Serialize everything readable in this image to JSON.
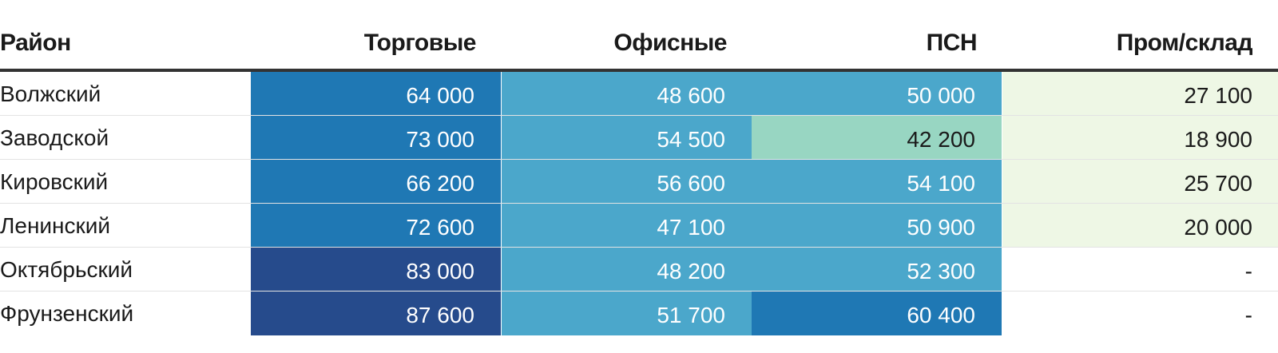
{
  "columns": [
    "Район",
    "Торговые",
    "Офисные",
    "ПСН",
    "Пром/склад"
  ],
  "rows": [
    {
      "name": "Волжский",
      "cells": [
        "64 000",
        "48 600",
        "50 000",
        "27 100"
      ]
    },
    {
      "name": "Заводской",
      "cells": [
        "73 000",
        "54 500",
        "42 200",
        "18 900"
      ]
    },
    {
      "name": "Кировский",
      "cells": [
        "66 200",
        "56 600",
        "54 100",
        "25 700"
      ]
    },
    {
      "name": "Ленинский",
      "cells": [
        "72 600",
        "47 100",
        "50 900",
        "20 000"
      ]
    },
    {
      "name": "Октябрьский",
      "cells": [
        "83 000",
        "48 200",
        "52 300",
        "-"
      ]
    },
    {
      "name": "Фрунзенский",
      "cells": [
        "87 600",
        "51 700",
        "60 400",
        "-"
      ]
    }
  ],
  "cell_colors": [
    [
      "#1f78b4",
      "#4ba7cb",
      "#4ba7cb",
      "#eef7e5"
    ],
    [
      "#1f78b4",
      "#4ba7cb",
      "#98d6c2",
      "#eef7e5"
    ],
    [
      "#1f78b4",
      "#4ba7cb",
      "#4ba7cb",
      "#eef7e5"
    ],
    [
      "#1f78b4",
      "#4ba7cb",
      "#4ba7cb",
      "#eef7e5"
    ],
    [
      "#264b8c",
      "#4ba7cb",
      "#4ba7cb",
      "#ffffff"
    ],
    [
      "#264b8c",
      "#4ba7cb",
      "#1f78b4",
      "#ffffff"
    ]
  ],
  "cell_text_colors": [
    [
      "#ffffff",
      "#ffffff",
      "#ffffff",
      "#1a1a1a"
    ],
    [
      "#ffffff",
      "#ffffff",
      "#1a1a1a",
      "#1a1a1a"
    ],
    [
      "#ffffff",
      "#ffffff",
      "#ffffff",
      "#1a1a1a"
    ],
    [
      "#ffffff",
      "#ffffff",
      "#ffffff",
      "#1a1a1a"
    ],
    [
      "#ffffff",
      "#ffffff",
      "#ffffff",
      "#1a1a1a"
    ],
    [
      "#ffffff",
      "#ffffff",
      "#ffffff",
      "#1a1a1a"
    ]
  ]
}
